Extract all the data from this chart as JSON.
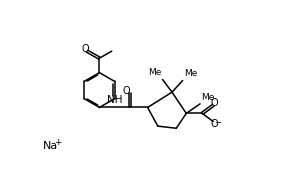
{
  "bg_color": "#ffffff",
  "line_color": "#000000",
  "line_width": 1.1,
  "figsize": [
    2.81,
    1.93
  ],
  "dpi": 100,
  "xlim": [
    0,
    10
  ],
  "ylim": [
    0,
    7
  ]
}
